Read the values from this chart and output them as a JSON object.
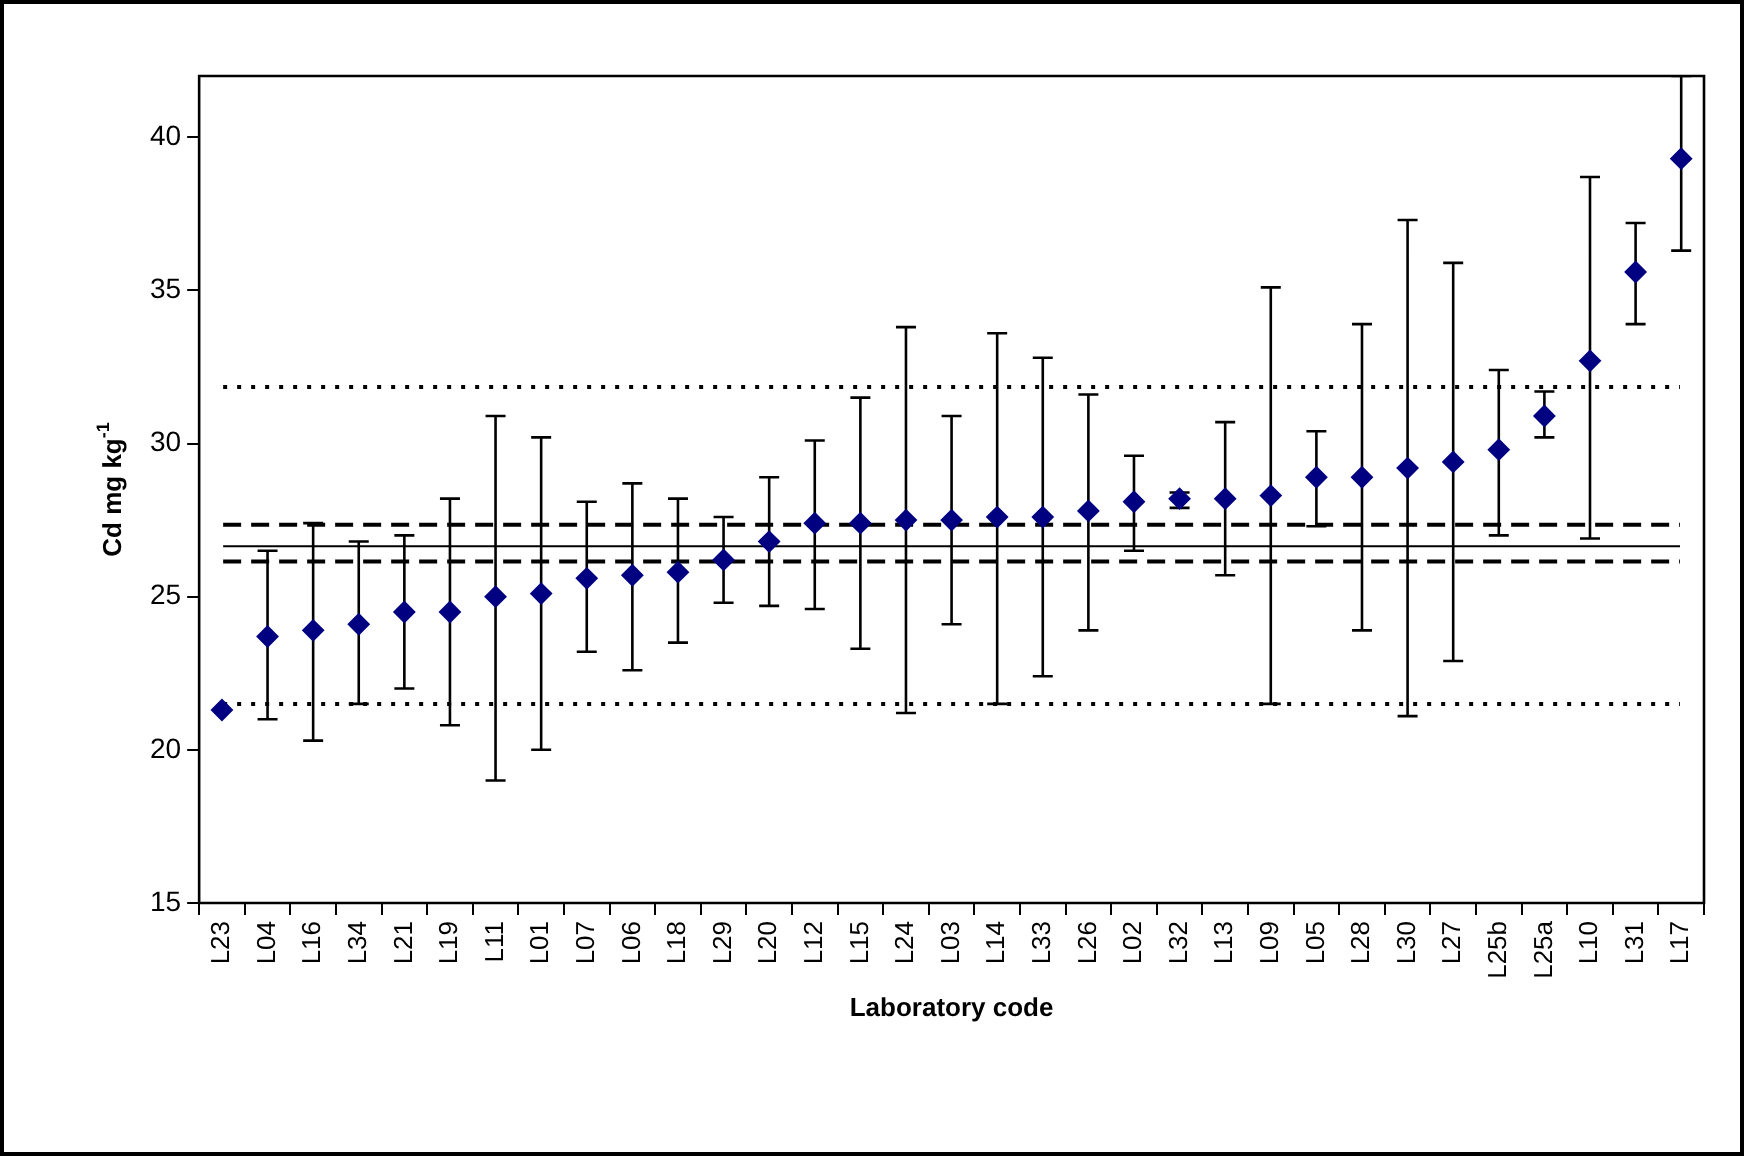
{
  "chart_data": {
    "type": "scatter",
    "xlabel": "Laboratory code",
    "ylabel": "Cd mg kg$^{-1}$",
    "categories": [
      "L23",
      "L04",
      "L16",
      "L34",
      "L21",
      "L19",
      "L11",
      "L01",
      "L07",
      "L06",
      "L18",
      "L29",
      "L20",
      "L12",
      "L15",
      "L24",
      "L03",
      "L14",
      "L33",
      "L26",
      "L02",
      "L32",
      "L13",
      "L09",
      "L05",
      "L28",
      "L30",
      "L27",
      "L25b",
      "L25a",
      "L10",
      "L31",
      "L17"
    ],
    "series": [
      {
        "color": "#000080",
        "values": [
          21.3,
          23.7,
          23.9,
          24.1,
          24.5,
          24.5,
          25.0,
          25.1,
          25.6,
          25.7,
          25.8,
          26.2,
          26.8,
          27.4,
          27.4,
          27.5,
          27.5,
          27.6,
          27.6,
          27.8,
          28.1,
          28.2,
          28.2,
          28.3,
          28.9,
          28.9,
          29.2,
          29.4,
          29.8,
          30.9,
          32.7,
          35.6,
          39.3
        ],
        "errors": [
          null,
          [
            21.0,
            26.5
          ],
          [
            20.3,
            27.4
          ],
          [
            21.5,
            26.8
          ],
          [
            22.0,
            27.0
          ],
          [
            20.8,
            28.2
          ],
          [
            19.0,
            30.9
          ],
          [
            20.0,
            30.2
          ],
          [
            23.2,
            28.1
          ],
          [
            22.6,
            28.7
          ],
          [
            23.5,
            28.2
          ],
          [
            24.8,
            27.6
          ],
          [
            24.7,
            28.9
          ],
          [
            24.6,
            30.1
          ],
          [
            23.3,
            31.5
          ],
          [
            21.2,
            33.8
          ],
          [
            24.1,
            30.9
          ],
          [
            21.5,
            33.6
          ],
          [
            22.4,
            32.8
          ],
          [
            23.9,
            31.6
          ],
          [
            26.5,
            29.6
          ],
          [
            27.9,
            28.4
          ],
          [
            25.7,
            30.7
          ],
          [
            21.5,
            35.1
          ],
          [
            27.3,
            30.4
          ],
          [
            23.9,
            33.9
          ],
          [
            21.1,
            37.3
          ],
          [
            22.9,
            35.9
          ],
          [
            27.0,
            32.4
          ],
          [
            30.2,
            31.7
          ],
          [
            26.9,
            38.7
          ],
          [
            33.9,
            37.2
          ],
          [
            36.3,
            42
          ]
        ]
      }
    ],
    "ylim": [
      15,
      42
    ],
    "yticks": [
      15,
      20,
      25,
      30,
      35,
      40
    ],
    "marker": "diamond",
    "grid": false,
    "legend": false,
    "ref_lines": [
      {
        "axis": "y",
        "value": 26.65,
        "line_style": "solid",
        "color": "#000000"
      },
      {
        "axis": "y",
        "value": 27.35,
        "line_style": "dashed",
        "color": "#000000"
      },
      {
        "axis": "y",
        "value": 26.15,
        "line_style": "dashed",
        "color": "#000000"
      },
      {
        "axis": "y",
        "value": 31.85,
        "line_style": "dotted",
        "color": "#000000"
      },
      {
        "axis": "y",
        "value": 21.5,
        "line_style": "dotted",
        "color": "#000000"
      }
    ]
  }
}
